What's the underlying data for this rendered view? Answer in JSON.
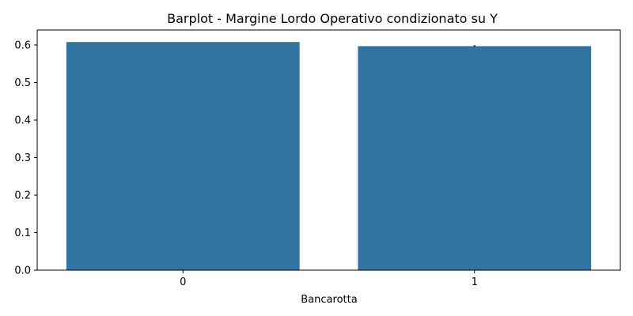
{
  "chart_data": {
    "type": "bar",
    "title": "Barplot - Margine Lordo Operativo condizionato su Y",
    "xlabel": "Bancarotta",
    "ylabel": "",
    "categories": [
      "0",
      "1"
    ],
    "values": [
      0.608,
      0.597
    ],
    "error": [
      0.0,
      0.0025
    ],
    "ylim": [
      0,
      0.64
    ],
    "yticks": [
      0.0,
      0.1,
      0.2,
      0.3,
      0.4,
      0.5,
      0.6
    ],
    "ytick_labels": [
      "0.0",
      "0.1",
      "0.2",
      "0.3",
      "0.4",
      "0.5",
      "0.6"
    ],
    "grid": false,
    "colors": {
      "bar": "#3274a1",
      "errorbar": "#3f3f3f",
      "axis": "#000000"
    }
  }
}
